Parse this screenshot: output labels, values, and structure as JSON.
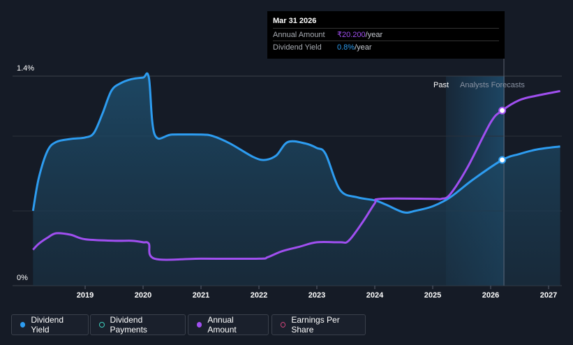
{
  "chart_data": {
    "type": "area",
    "y_axis": {
      "top_label": "1.4%",
      "bottom_label": "0%",
      "ylim": [
        0,
        1.4
      ]
    },
    "x_ticks": [
      "2019",
      "2020",
      "2021",
      "2022",
      "2023",
      "2024",
      "2025",
      "2026",
      "2027"
    ],
    "regions": {
      "past": "Past",
      "forecast": "Analysts Forecasts"
    },
    "series": [
      {
        "name": "Dividend Yield",
        "color": "#2d9cf0",
        "x": [
          2018.1,
          2018.2,
          2018.35,
          2018.5,
          2018.75,
          2019.0,
          2019.15,
          2019.3,
          2019.45,
          2019.6,
          2019.8,
          2020.0,
          2020.1,
          2020.2,
          2020.5,
          2021.0,
          2021.2,
          2021.5,
          2021.9,
          2022.1,
          2022.3,
          2022.5,
          2022.8,
          2023.0,
          2023.15,
          2023.4,
          2023.7,
          2024.0,
          2024.2,
          2024.5,
          2024.7,
          2025.0,
          2025.3,
          2025.7,
          2026.2,
          2026.5,
          2026.8,
          2027.2
        ],
        "y": [
          0.5,
          0.72,
          0.9,
          0.96,
          0.98,
          0.99,
          1.02,
          1.15,
          1.3,
          1.35,
          1.38,
          1.39,
          1.39,
          1.01,
          1.01,
          1.01,
          1.0,
          0.95,
          0.86,
          0.84,
          0.87,
          0.96,
          0.95,
          0.92,
          0.88,
          0.64,
          0.59,
          0.57,
          0.54,
          0.49,
          0.5,
          0.53,
          0.59,
          0.71,
          0.84,
          0.88,
          0.91,
          0.93
        ]
      },
      {
        "name": "Annual Amount",
        "color": "#a04ff0",
        "x": [
          2018.1,
          2018.2,
          2018.35,
          2018.5,
          2018.75,
          2019.0,
          2019.5,
          2019.8,
          2020.0,
          2020.1,
          2020.2,
          2021.0,
          2022.0,
          2022.15,
          2022.4,
          2022.7,
          2023.0,
          2023.4,
          2023.55,
          2023.8,
          2024.0,
          2024.1,
          2025.0,
          2025.15,
          2025.3,
          2025.6,
          2026.0,
          2026.2,
          2026.5,
          2026.8,
          2027.2
        ],
        "y": [
          0.24,
          0.28,
          0.32,
          0.35,
          0.34,
          0.31,
          0.3,
          0.3,
          0.29,
          0.28,
          0.18,
          0.18,
          0.18,
          0.19,
          0.23,
          0.26,
          0.29,
          0.29,
          0.3,
          0.43,
          0.55,
          0.58,
          0.58,
          0.58,
          0.61,
          0.79,
          1.09,
          1.17,
          1.24,
          1.27,
          1.3
        ]
      }
    ],
    "markers": [
      {
        "series": "Annual Amount",
        "x": 2026.2,
        "y": 1.17
      },
      {
        "series": "Dividend Yield",
        "x": 2026.2,
        "y": 0.84
      }
    ]
  },
  "tooltip": {
    "date": "Mar 31 2026",
    "rows": [
      {
        "label": "Annual Amount",
        "value": "₹20.200",
        "unit": "/year",
        "color": "#a04ff0"
      },
      {
        "label": "Dividend Yield",
        "value": "0.8%",
        "unit": "/year",
        "color": "#2d9cf0"
      }
    ]
  },
  "legend": [
    {
      "label": "Dividend Yield",
      "color": "#2d9cf0",
      "style": "filled"
    },
    {
      "label": "Dividend Payments",
      "color": "#3fd1bf",
      "style": "hollow"
    },
    {
      "label": "Annual Amount",
      "color": "#a04ff0",
      "style": "filled"
    },
    {
      "label": "Earnings Per Share",
      "color": "#d0447a",
      "style": "hollow"
    }
  ]
}
